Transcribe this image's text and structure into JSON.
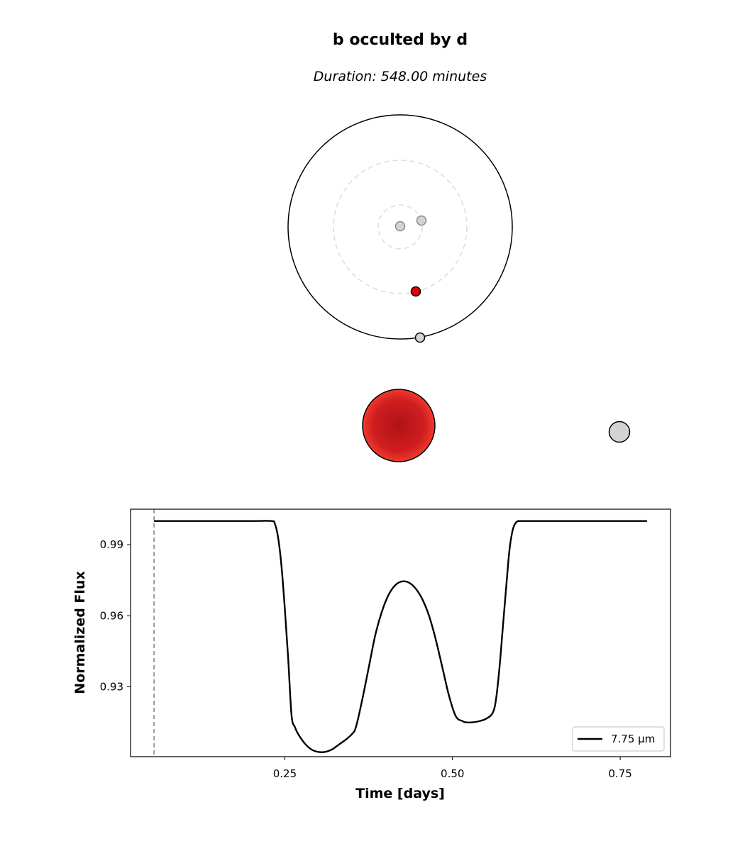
{
  "figure": {
    "title": "b occulted by d",
    "subtitle": "Duration: 548.00 minutes"
  },
  "colors": {
    "star": "#d62020",
    "star_edge": "#ef3a2e",
    "star_core": "#b01218",
    "planet_fill": "#d3d3d3",
    "orbit_guide": "#dcdcdc",
    "curve": "#000000",
    "marker_line": "#808080"
  },
  "orbit_view": {
    "orbits": [
      {
        "name": "inner",
        "relative_radius": 0.2,
        "style": "dashed"
      },
      {
        "name": "middle",
        "relative_radius": 0.6,
        "style": "dashed"
      },
      {
        "name": "outer",
        "relative_radius": 1.0,
        "style": "solid"
      }
    ],
    "bodies": [
      {
        "name": "inner-planet-1",
        "faded": true
      },
      {
        "name": "inner-planet-2",
        "faded": true
      },
      {
        "name": "star",
        "faded": false
      },
      {
        "name": "outer-planet",
        "faded": false
      }
    ]
  },
  "sky_view": {
    "bodies": [
      {
        "name": "occulting-star"
      },
      {
        "name": "occulted-planet"
      }
    ]
  },
  "chart_data": {
    "type": "line",
    "title": "",
    "xlabel": "Time [days]",
    "ylabel": "Normalized Flux",
    "xlim": [
      0.02,
      0.825
    ],
    "ylim": [
      0.9005,
      1.005
    ],
    "xticks": [
      0.25,
      0.5,
      0.75
    ],
    "xtick_labels": [
      "0.25",
      "0.50",
      "0.75"
    ],
    "yticks": [
      0.93,
      0.96,
      0.99
    ],
    "ytick_labels": [
      "0.93",
      "0.96",
      "0.99"
    ],
    "grid": false,
    "legend_position": "lower-right",
    "vline_x": 0.055,
    "series": [
      {
        "name": "7.75 μm",
        "x": [
          0.055,
          0.1,
          0.15,
          0.2,
          0.23,
          0.235,
          0.24,
          0.245,
          0.25,
          0.255,
          0.26,
          0.265,
          0.27,
          0.28,
          0.29,
          0.3,
          0.31,
          0.32,
          0.33,
          0.34,
          0.35,
          0.356,
          0.365,
          0.375,
          0.385,
          0.395,
          0.405,
          0.415,
          0.425,
          0.435,
          0.445,
          0.455,
          0.465,
          0.475,
          0.485,
          0.495,
          0.505,
          0.515,
          0.52,
          0.53,
          0.54,
          0.55,
          0.56,
          0.565,
          0.57,
          0.575,
          0.58,
          0.585,
          0.59,
          0.595,
          0.6,
          0.602,
          0.65,
          0.7,
          0.75,
          0.79
        ],
        "y": [
          1.0,
          1.0,
          1.0,
          1.0,
          1.0,
          0.999,
          0.993,
          0.981,
          0.963,
          0.942,
          0.918,
          0.913,
          0.91,
          0.906,
          0.9035,
          0.9025,
          0.9025,
          0.9035,
          0.9055,
          0.9075,
          0.91,
          0.913,
          0.924,
          0.938,
          0.952,
          0.962,
          0.969,
          0.973,
          0.9745,
          0.974,
          0.9715,
          0.967,
          0.96,
          0.95,
          0.938,
          0.926,
          0.9175,
          0.9155,
          0.915,
          0.915,
          0.9155,
          0.9165,
          0.919,
          0.925,
          0.938,
          0.955,
          0.972,
          0.988,
          0.9965,
          0.9995,
          1.0,
          1.0,
          1.0,
          1.0,
          1.0,
          1.0
        ]
      }
    ]
  }
}
